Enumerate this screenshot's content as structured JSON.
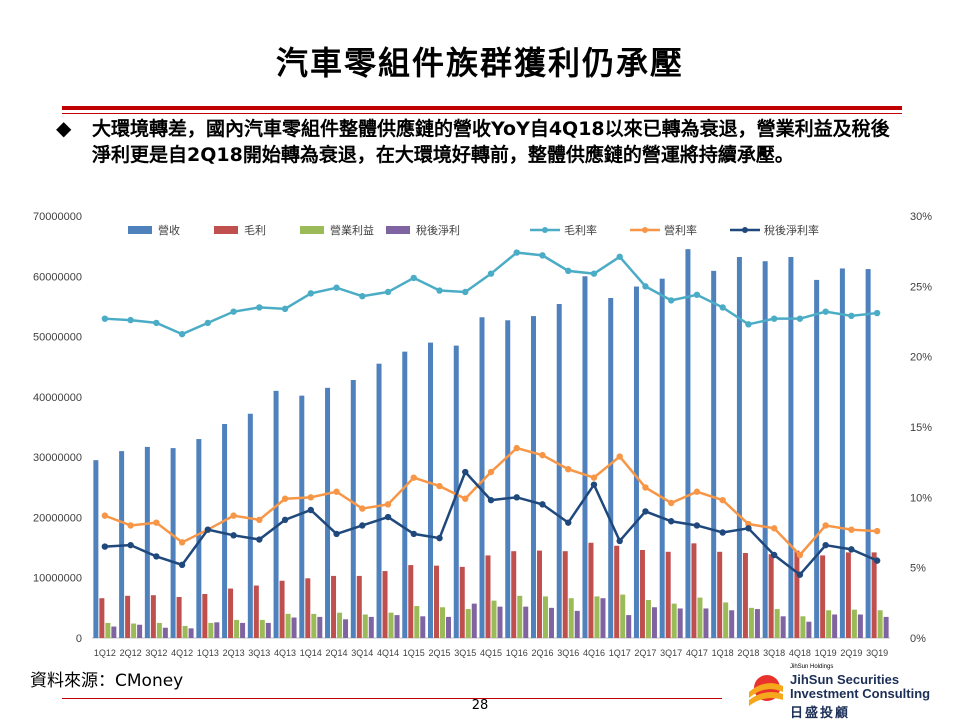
{
  "title": "汽車零組件族群獲利仍承壓",
  "bullet_symbol": "◆",
  "bullet_text": "大環境轉差，國內汽車零組件整體供應鏈的營收YoY自4Q18以來已轉為衰退，營業利益及稅後淨利更是自2Q18開始轉為衰退，在大環境好轉前，整體供應鏈的營運將持續承壓。",
  "source": "資料來源：CMoney",
  "page_number": "28",
  "logo": {
    "small": "JihSun Holdings",
    "line1": "JihSun Securities",
    "line2": "Investment Consulting",
    "chinese": "日盛投顧"
  },
  "chart_data": {
    "type": "bar+line",
    "categories": [
      "1Q12",
      "2Q12",
      "3Q12",
      "4Q12",
      "1Q13",
      "2Q13",
      "3Q13",
      "4Q13",
      "1Q14",
      "2Q14",
      "3Q14",
      "4Q14",
      "1Q15",
      "2Q15",
      "3Q15",
      "4Q15",
      "1Q16",
      "2Q16",
      "3Q16",
      "4Q16",
      "1Q17",
      "2Q17",
      "3Q17",
      "4Q17",
      "1Q18",
      "2Q18",
      "3Q18",
      "4Q18",
      "1Q19",
      "2Q19",
      "3Q19"
    ],
    "left_axis": {
      "min": 0,
      "max": 70000000,
      "ticks": [
        "0",
        "10000000",
        "20000000",
        "30000000",
        "40000000",
        "50000000",
        "60000000",
        "70000000"
      ]
    },
    "right_axis": {
      "min": 0,
      "max": 30,
      "ticks": [
        "0%",
        "5%",
        "10%",
        "15%",
        "20%",
        "25%",
        "30%"
      ]
    },
    "bar_series": [
      {
        "name": "營收",
        "color": "#4f81bd",
        "values": [
          29500000,
          31000000,
          31700000,
          31500000,
          33000000,
          35500000,
          37200000,
          41000000,
          40200000,
          41500000,
          42800000,
          45500000,
          47500000,
          49000000,
          48500000,
          53200000,
          52700000,
          53400000,
          55400000,
          60000000,
          56400000,
          58300000,
          59600000,
          64500000,
          60900000,
          63200000,
          62500000,
          63200000,
          59400000,
          61300000,
          61200000
        ]
      },
      {
        "name": "毛利",
        "color": "#c0504d",
        "values": [
          6600000,
          7000000,
          7100000,
          6800000,
          7300000,
          8200000,
          8700000,
          9500000,
          9900000,
          10300000,
          10300000,
          11100000,
          12100000,
          12000000,
          11800000,
          13700000,
          14400000,
          14500000,
          14400000,
          15800000,
          15300000,
          14600000,
          14300000,
          15700000,
          14300000,
          14100000,
          13900000,
          14500000,
          13700000,
          14200000,
          14200000
        ]
      },
      {
        "name": "營業利益",
        "color": "#9bbb59",
        "values": [
          2500000,
          2400000,
          2500000,
          2000000,
          2500000,
          3000000,
          3000000,
          4000000,
          4000000,
          4200000,
          3900000,
          4200000,
          5300000,
          5100000,
          4800000,
          6200000,
          7000000,
          6900000,
          6600000,
          6900000,
          7200000,
          6300000,
          5700000,
          6700000,
          5900000,
          5000000,
          4800000,
          3600000,
          4600000,
          4700000,
          4600000
        ]
      },
      {
        "name": "稅後淨利",
        "color": "#8064a2",
        "values": [
          1900000,
          2200000,
          1700000,
          1600000,
          2600000,
          2500000,
          2500000,
          3400000,
          3500000,
          3100000,
          3500000,
          3800000,
          3600000,
          3500000,
          5700000,
          5200000,
          5200000,
          5000000,
          4500000,
          6600000,
          3800000,
          5100000,
          4900000,
          4900000,
          4600000,
          4800000,
          3600000,
          2700000,
          3900000,
          3900000,
          3500000
        ]
      }
    ],
    "line_series": [
      {
        "name": "毛利率",
        "color": "#4bacc6",
        "values": [
          22.7,
          22.6,
          22.4,
          21.6,
          22.4,
          23.2,
          23.5,
          23.4,
          24.5,
          24.9,
          24.3,
          24.6,
          25.6,
          24.7,
          24.6,
          25.9,
          27.4,
          27.2,
          26.1,
          25.9,
          27.1,
          25.0,
          24.0,
          24.4,
          23.5,
          22.3,
          22.7,
          22.7,
          23.2,
          22.9,
          23.1
        ]
      },
      {
        "name": "營利率",
        "color": "#f79646",
        "values": [
          8.7,
          8.0,
          8.2,
          6.8,
          7.7,
          8.7,
          8.4,
          9.9,
          10.0,
          10.4,
          9.2,
          9.5,
          11.4,
          10.8,
          9.9,
          11.8,
          13.5,
          13.0,
          12.0,
          11.4,
          12.9,
          10.7,
          9.6,
          10.4,
          9.8,
          8.1,
          7.8,
          5.9,
          8.0,
          7.7,
          7.6
        ]
      },
      {
        "name": "稅後淨利率",
        "color": "#1f497d",
        "values": [
          6.5,
          6.6,
          5.8,
          5.2,
          7.7,
          7.3,
          7.0,
          8.4,
          9.1,
          7.4,
          8.0,
          8.6,
          7.4,
          7.1,
          11.8,
          9.8,
          10.0,
          9.5,
          8.2,
          10.9,
          6.9,
          9.0,
          8.3,
          8.0,
          7.5,
          7.8,
          5.9,
          4.5,
          6.6,
          6.3,
          5.5
        ]
      }
    ],
    "legend_position": "top"
  }
}
